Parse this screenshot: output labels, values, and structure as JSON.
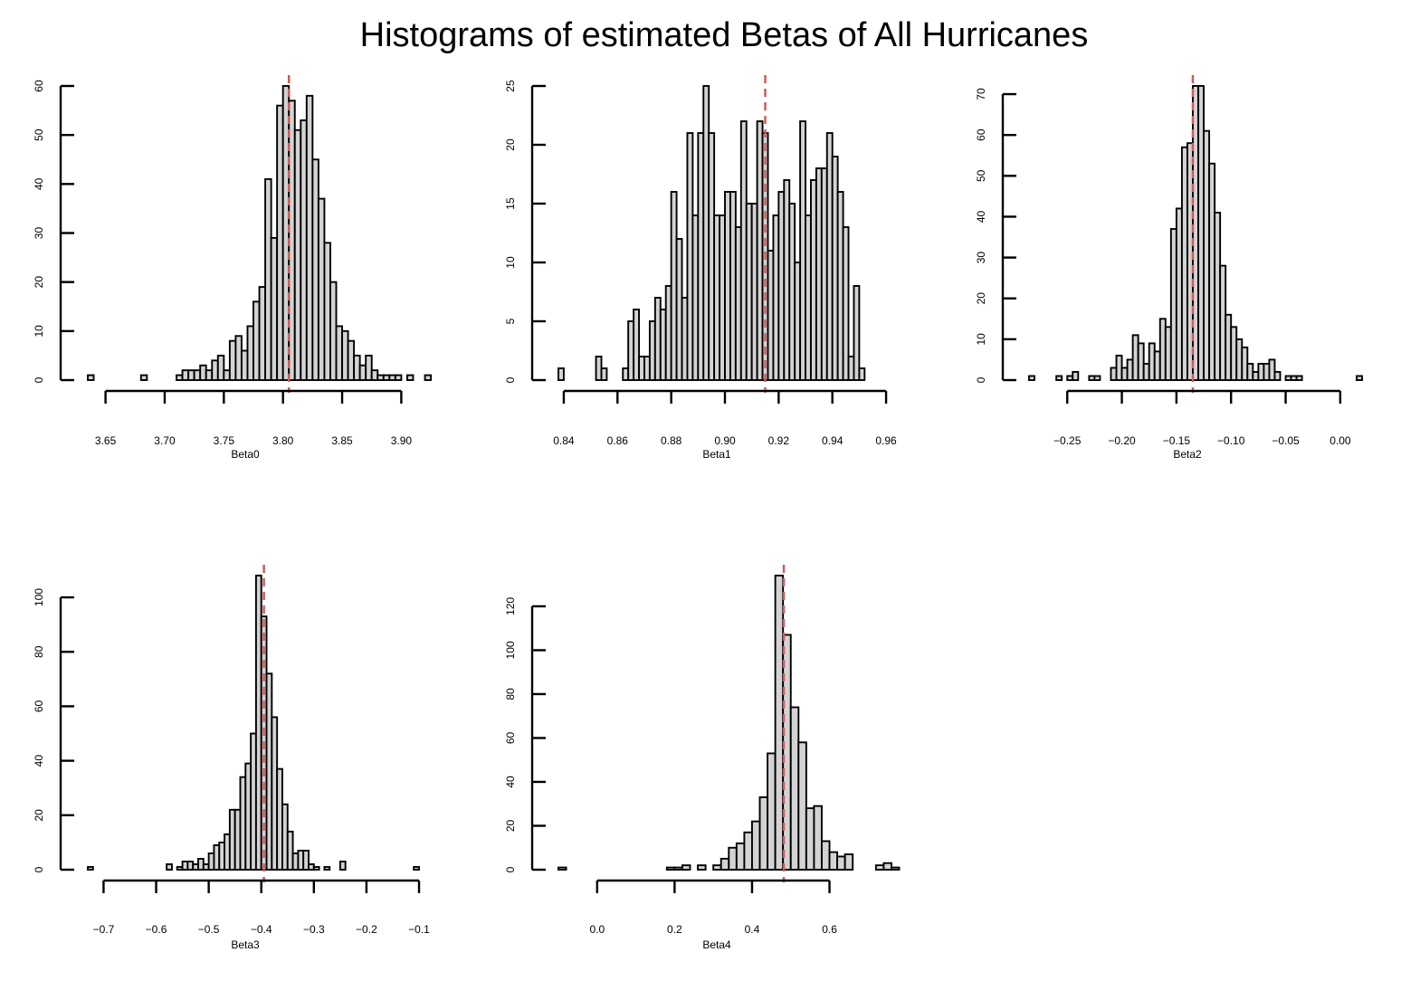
{
  "title": "Histograms of estimated Betas of All Hurricanes",
  "colors": {
    "bar_fill": "#d3d3d3",
    "bar_stroke": "#000000",
    "reference_line": "#cd5c5c"
  },
  "chart_data": [
    {
      "type": "bar",
      "xlabel": "Beta0",
      "ylabel": "",
      "xlim": [
        3.635,
        3.915
      ],
      "ylim": [
        0,
        60
      ],
      "x_ticks": [
        3.65,
        3.7,
        3.75,
        3.8,
        3.85,
        3.9
      ],
      "x_tick_labels": [
        "3.65",
        "3.70",
        "3.75",
        "3.80",
        "3.85",
        "3.90"
      ],
      "y_ticks": [
        0,
        10,
        20,
        30,
        40,
        50,
        60
      ],
      "bin_start": 3.635,
      "bin_width": 0.005,
      "counts": [
        1,
        0,
        0,
        0,
        0,
        0,
        0,
        0,
        0,
        1,
        0,
        0,
        0,
        0,
        0,
        1,
        2,
        2,
        2,
        3,
        2,
        4,
        5,
        2,
        8,
        9,
        6,
        11,
        16,
        19,
        41,
        29,
        56,
        60,
        57,
        51,
        53,
        58,
        45,
        37,
        28,
        20,
        11,
        10,
        8,
        5,
        3,
        5,
        2,
        1,
        1,
        1,
        1,
        0,
        1,
        0,
        0,
        1
      ],
      "reference_line": 3.805
    },
    {
      "type": "bar",
      "xlabel": "Beta1",
      "ylabel": "",
      "xlim": [
        0.838,
        0.962
      ],
      "ylim": [
        0,
        25
      ],
      "x_ticks": [
        0.84,
        0.86,
        0.88,
        0.9,
        0.92,
        0.94,
        0.96
      ],
      "x_tick_labels": [
        "0.84",
        "0.86",
        "0.88",
        "0.90",
        "0.92",
        "0.94",
        "0.96"
      ],
      "y_ticks": [
        0,
        5,
        10,
        15,
        20,
        25
      ],
      "bin_start": 0.838,
      "bin_width": 0.002,
      "counts": [
        1,
        0,
        0,
        0,
        0,
        0,
        0,
        2,
        1,
        0,
        0,
        0,
        1,
        5,
        6,
        2,
        2,
        5,
        7,
        6,
        8,
        16,
        12,
        7,
        21,
        14,
        21,
        25,
        21,
        14,
        14,
        16,
        16,
        13,
        22,
        15,
        15,
        22,
        21,
        11,
        14,
        16,
        17,
        15,
        10,
        22,
        14,
        17,
        18,
        18,
        21,
        19,
        16,
        13,
        2,
        8,
        1
      ],
      "reference_line": 0.915
    },
    {
      "type": "bar",
      "xlabel": "Beta2",
      "ylabel": "",
      "xlim": [
        -0.285,
        0.02
      ],
      "ylim": [
        0,
        72
      ],
      "x_ticks": [
        -0.25,
        -0.2,
        -0.15,
        -0.1,
        -0.05,
        0.0
      ],
      "x_tick_labels": [
        "−0.25",
        "−0.20",
        "−0.15",
        "−0.10",
        "−0.05",
        "0.00"
      ],
      "y_ticks": [
        0,
        10,
        20,
        30,
        40,
        50,
        60,
        70
      ],
      "bin_start": -0.285,
      "bin_width": 0.005,
      "counts": [
        1,
        0,
        0,
        0,
        0,
        1,
        0,
        1,
        2,
        0,
        0,
        1,
        1,
        0,
        0,
        3,
        6,
        3,
        5,
        11,
        9,
        4,
        9,
        7,
        15,
        13,
        37,
        42,
        57,
        58,
        72,
        72,
        61,
        53,
        41,
        28,
        16,
        13,
        10,
        8,
        4,
        2,
        4,
        4,
        5,
        2,
        0,
        1,
        1,
        1,
        0,
        0,
        0,
        0,
        0,
        0,
        0,
        0,
        0,
        0,
        1
      ],
      "reference_line": -0.135
    },
    {
      "type": "bar",
      "xlabel": "Beta3",
      "ylabel": "",
      "xlim": [
        -0.73,
        -0.1
      ],
      "ylim": [
        0,
        108
      ],
      "x_ticks": [
        -0.7,
        -0.6,
        -0.5,
        -0.4,
        -0.3,
        -0.2,
        -0.1
      ],
      "x_tick_labels": [
        "−0.7",
        "−0.6",
        "−0.5",
        "−0.4",
        "−0.3",
        "−0.2",
        "−0.1"
      ],
      "y_ticks": [
        0,
        20,
        40,
        60,
        80,
        100
      ],
      "bin_start": -0.73,
      "bin_width": 0.01,
      "counts": [
        1,
        0,
        0,
        0,
        0,
        0,
        0,
        0,
        0,
        0,
        0,
        0,
        0,
        0,
        0,
        2,
        0,
        1,
        3,
        3,
        2,
        4,
        2,
        6,
        9,
        10,
        13,
        22,
        22,
        34,
        39,
        50,
        108,
        93,
        72,
        56,
        37,
        24,
        14,
        6,
        7,
        7,
        2,
        1,
        0,
        1,
        0,
        0,
        3,
        0,
        0,
        0,
        0,
        0,
        0,
        0,
        0,
        0,
        0,
        0,
        0,
        0,
        1
      ],
      "reference_line": -0.395
    },
    {
      "type": "bar",
      "xlabel": "Beta4",
      "ylabel": "",
      "xlim": [
        -0.1,
        0.76
      ],
      "ylim": [
        0,
        134
      ],
      "x_ticks": [
        0.0,
        0.2,
        0.4,
        0.6
      ],
      "x_tick_labels": [
        "0.0",
        "0.2",
        "0.4",
        "0.6"
      ],
      "y_ticks": [
        0,
        20,
        40,
        60,
        80,
        100,
        120
      ],
      "bin_start": -0.1,
      "bin_width": 0.02,
      "counts": [
        1,
        0,
        0,
        0,
        0,
        0,
        0,
        0,
        0,
        0,
        0,
        0,
        0,
        0,
        1,
        1,
        2,
        0,
        2,
        0,
        2,
        5,
        10,
        12,
        17,
        22,
        33,
        53,
        134,
        107,
        74,
        58,
        28,
        29,
        13,
        8,
        6,
        7,
        0,
        0,
        0,
        2,
        3,
        1
      ],
      "reference_line": 0.482
    }
  ]
}
